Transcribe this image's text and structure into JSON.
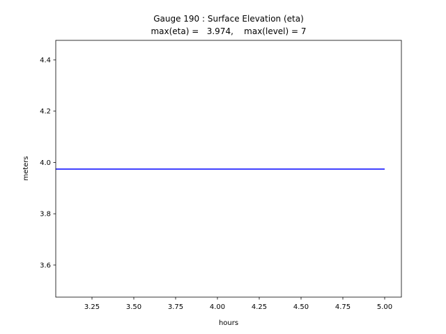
{
  "chart_data": {
    "type": "line",
    "title": "Gauge 190 : Surface Elevation (eta)",
    "subtitle": "max(eta) =   3.974,    max(level) = 7",
    "xlabel": "hours",
    "ylabel": "meters",
    "x": [
      3.0333,
      5.0
    ],
    "series": [
      {
        "color": "#0000ff",
        "values": [
          3.974,
          3.974
        ]
      }
    ],
    "xlim": [
      3.0333,
      5.1
    ],
    "ylim": [
      3.475,
      4.476
    ],
    "xticks": [
      3.25,
      {
        "value": 3.5,
        "label": "3.50"
      },
      3.75,
      {
        "value": 4,
        "label": "4.00"
      },
      4.25,
      {
        "value": 4.5,
        "label": "4.50"
      },
      4.75,
      {
        "value": 5,
        "label": "5.00"
      }
    ],
    "yticks": [
      3.6,
      3.8,
      {
        "value": 4,
        "label": "4.0"
      },
      4.2,
      4.4
    ]
  }
}
